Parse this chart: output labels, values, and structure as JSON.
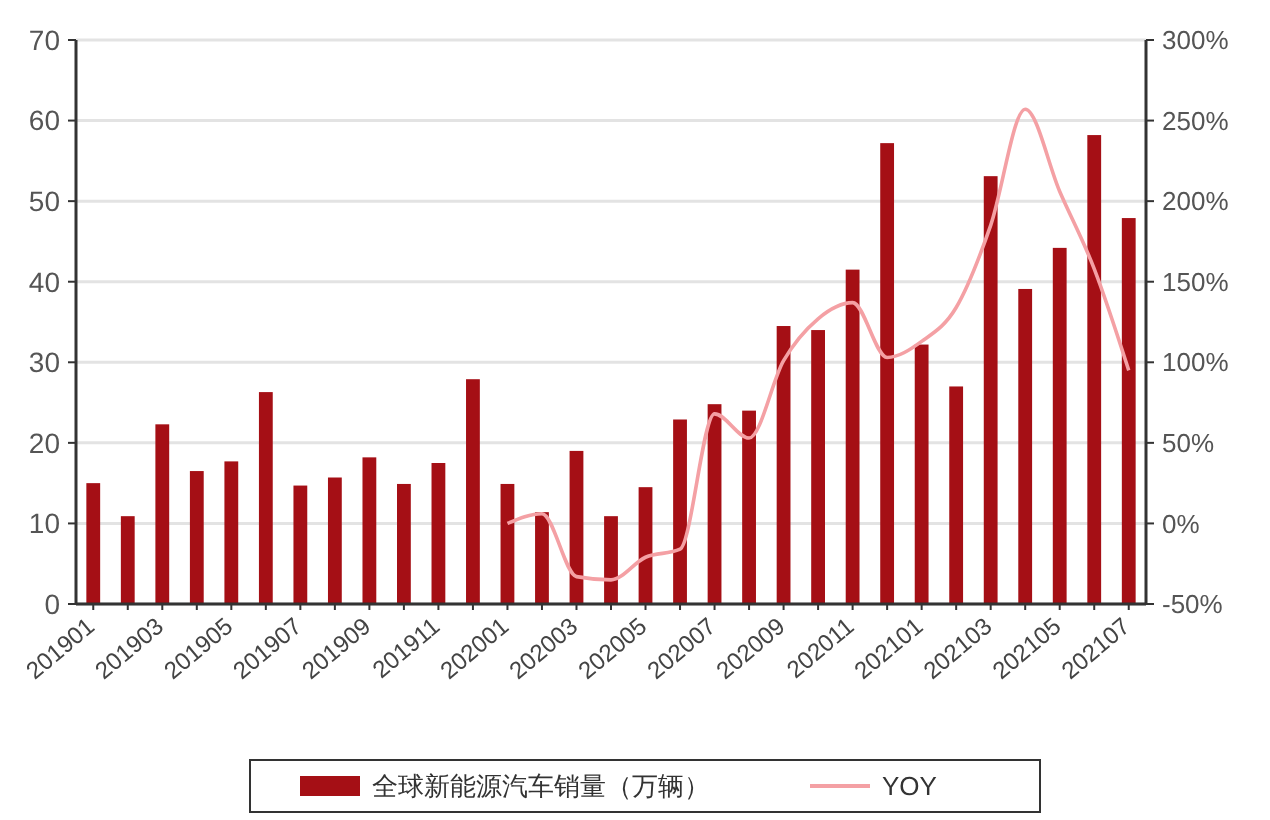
{
  "chart_data": {
    "type": "bar",
    "categories": [
      "201901",
      null,
      "201903",
      null,
      "201905",
      null,
      "201907",
      null,
      "201909",
      null,
      "201911",
      null,
      "202001",
      null,
      "202003",
      null,
      "202005",
      null,
      "202007",
      null,
      "202009",
      null,
      "202011",
      null,
      "202101",
      null,
      "202103",
      null,
      "202105",
      null,
      "202107"
    ],
    "series": [
      {
        "name": "全球新能源汽车销量（万辆）",
        "color": "#a50f15",
        "values": [
          15.0,
          10.9,
          22.3,
          16.5,
          17.7,
          26.3,
          14.7,
          15.7,
          18.2,
          14.9,
          17.5,
          27.9,
          14.9,
          11.4,
          19.0,
          10.9,
          14.5,
          22.9,
          24.8,
          24.0,
          34.5,
          34.0,
          41.5,
          57.2,
          32.2,
          27.0,
          53.1,
          39.1,
          44.2,
          58.2,
          47.9
        ]
      },
      {
        "name": "YOY",
        "type": "line",
        "axis": "y2",
        "color": "#f4a0a4",
        "values": [
          null,
          null,
          null,
          null,
          null,
          null,
          null,
          null,
          null,
          null,
          null,
          null,
          0,
          6,
          -33,
          -35,
          -21,
          -16,
          68,
          53,
          101,
          127,
          137,
          103,
          113,
          134,
          185,
          257,
          206,
          158,
          95
        ]
      }
    ],
    "ylim": [
      0,
      70
    ],
    "yticks": [
      0,
      10,
      20,
      30,
      40,
      50,
      60,
      70
    ],
    "y2lim": [
      -50,
      300
    ],
    "y2ticks": [
      {
        "value": -50,
        "label": "-50%"
      },
      {
        "value": 0,
        "label": "0%"
      },
      {
        "value": 50,
        "label": "50%"
      },
      {
        "value": 100,
        "label": "100%"
      },
      {
        "value": 150,
        "label": "150%"
      },
      {
        "value": 200,
        "label": "200%"
      },
      {
        "value": 250,
        "label": "250%"
      },
      {
        "value": 300,
        "label": "300%"
      }
    ],
    "grid": "y",
    "legend": "bottom",
    "marker": "none",
    "line_style": "solid"
  }
}
